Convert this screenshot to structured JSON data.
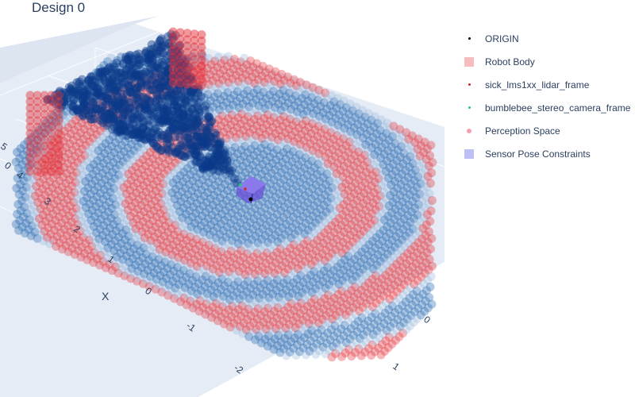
{
  "chart_data": {
    "type": "scatter3d",
    "title": "Design 0",
    "axes": {
      "x": {
        "label": "X",
        "ticks": [
          "4",
          "3",
          "2",
          "1",
          "0",
          "-1",
          "-2"
        ]
      },
      "y": {
        "label": "",
        "ticks": [
          "0",
          "1"
        ]
      },
      "z": {
        "label": "",
        "ticks": [
          "5",
          "0"
        ]
      }
    },
    "grid": true,
    "legend": {
      "position": "top-right"
    },
    "series": [
      {
        "name": "ORIGIN",
        "marker": "dot",
        "color": "#000000"
      },
      {
        "name": "Robot Body",
        "marker": "square",
        "color": "#f4a6a6"
      },
      {
        "name": "sick_lms1xx_lidar_frame",
        "marker": "dot",
        "color": "#d62728"
      },
      {
        "name": "bumblebee_stereo_camera_frame",
        "marker": "dot",
        "color": "#2ec27e"
      },
      {
        "name": "Perception Space",
        "marker": "dot",
        "color": "#f4a0b0"
      },
      {
        "name": "Sensor Pose Constraints",
        "marker": "square",
        "color": "#a9a9f5"
      }
    ]
  },
  "colors": {
    "scene_bg": "#e5ecf6",
    "grid": "#ffffff",
    "blue_dark": "#0b3a8a",
    "blue_mid": "#1f63b0",
    "blue_light": "#9ab9dc",
    "red": "#e3323a",
    "robot_box": "#6a4fd8"
  }
}
